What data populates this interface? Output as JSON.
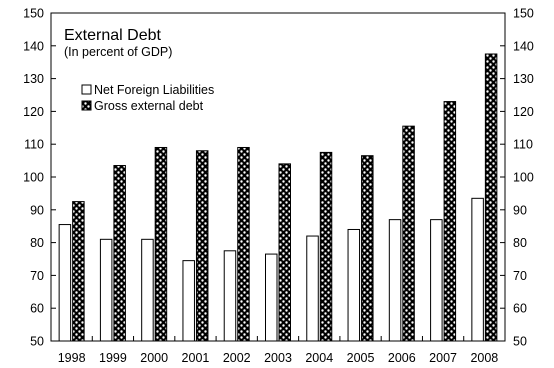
{
  "chart_data": {
    "type": "bar",
    "title": "External Debt",
    "subtitle": "(In percent of GDP)",
    "xlabel": "",
    "ylabel": "",
    "ylim": [
      50,
      150
    ],
    "yticks": [
      50,
      60,
      70,
      80,
      90,
      100,
      110,
      120,
      130,
      140,
      150
    ],
    "right_axis": true,
    "grid": false,
    "legend_position": "top-left",
    "categories": [
      "1998",
      "1999",
      "2000",
      "2001",
      "2002",
      "2003",
      "2004",
      "2005",
      "2006",
      "2007",
      "2008"
    ],
    "series": [
      {
        "name": "Net Foreign Liabilities",
        "pattern": "white",
        "values": [
          85.5,
          81,
          81,
          74.5,
          77.5,
          76.5,
          82,
          84,
          87,
          87,
          93.5
        ]
      },
      {
        "name": "Gross external debt",
        "pattern": "checker",
        "values": [
          92.5,
          103.5,
          109,
          108,
          109,
          104,
          107.5,
          106.5,
          115.5,
          123,
          137.5
        ]
      }
    ]
  }
}
